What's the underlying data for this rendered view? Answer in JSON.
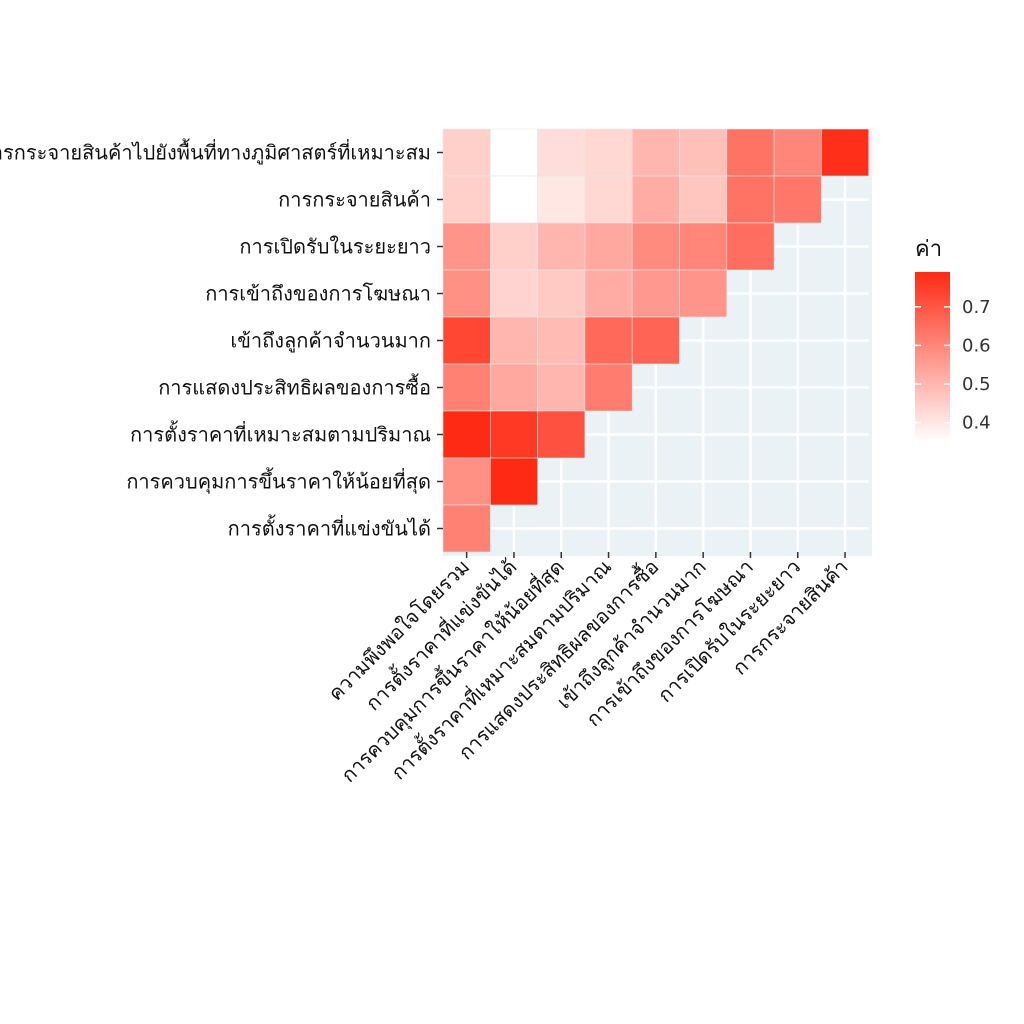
{
  "chart_data": {
    "type": "heatmap",
    "title": "",
    "xlabel": "",
    "ylabel": "",
    "x_categories": [
      "ความพึงพอใจโดยรวม",
      "การตั้งราคาที่แข่งขันได้",
      "การควบคุมการขึ้นราคาให้น้อยที่สุด",
      "การตั้งราคาที่เหมาะสมตามปริมาณ",
      "การแสดงประสิทธิผลของการซื้อ",
      "เข้าถึงลูกค้าจำนวนมาก",
      "การเข้าถึงของการโฆษณา",
      "การเปิดรับในระยะยาว",
      "การกระจายสินค้า"
    ],
    "y_categories": [
      "การกระจายสินค้าไปยังพื้นที่ทางภูมิศาสตร์ที่เหมาะสม",
      "การกระจายสินค้า",
      "การเปิดรับในระยะยาว",
      "การเข้าถึงของการโฆษณา",
      "เข้าถึงลูกค้าจำนวนมาก",
      "การแสดงประสิทธิผลของการซื้อ",
      "การตั้งราคาที่เหมาะสมตามปริมาณ",
      "การควบคุมการขึ้นราคาให้น้อยที่สุด",
      "การตั้งราคาที่แข่งขันได้"
    ],
    "values": [
      [
        0.45,
        0.35,
        0.42,
        0.43,
        0.5,
        0.48,
        0.64,
        0.6,
        0.78
      ],
      [
        0.45,
        0.35,
        0.4,
        0.43,
        0.52,
        0.47,
        0.64,
        0.63,
        null
      ],
      [
        0.57,
        0.45,
        0.5,
        0.53,
        0.59,
        0.6,
        0.65,
        null,
        null
      ],
      [
        0.58,
        0.44,
        0.46,
        0.52,
        0.56,
        0.57,
        null,
        null,
        null
      ],
      [
        0.73,
        0.5,
        0.49,
        0.66,
        0.67,
        null,
        null,
        null,
        null
      ],
      [
        0.61,
        0.53,
        0.5,
        0.62,
        null,
        null,
        null,
        null,
        null
      ],
      [
        0.79,
        0.76,
        0.71,
        null,
        null,
        null,
        null,
        null,
        null
      ],
      [
        0.58,
        0.79,
        null,
        null,
        null,
        null,
        null,
        null,
        null
      ],
      [
        0.61,
        null,
        null,
        null,
        null,
        null,
        null,
        null,
        null
      ]
    ],
    "color_scale": {
      "low": "#ffffff",
      "high": "#ff2a14",
      "min": 0.35,
      "max": 0.79
    },
    "legend": {
      "title": "ค่า",
      "ticks": [
        0.7,
        0.6,
        0.5,
        0.4
      ],
      "position": "right"
    },
    "grid": true,
    "panel_background": "#ebf2f6"
  }
}
